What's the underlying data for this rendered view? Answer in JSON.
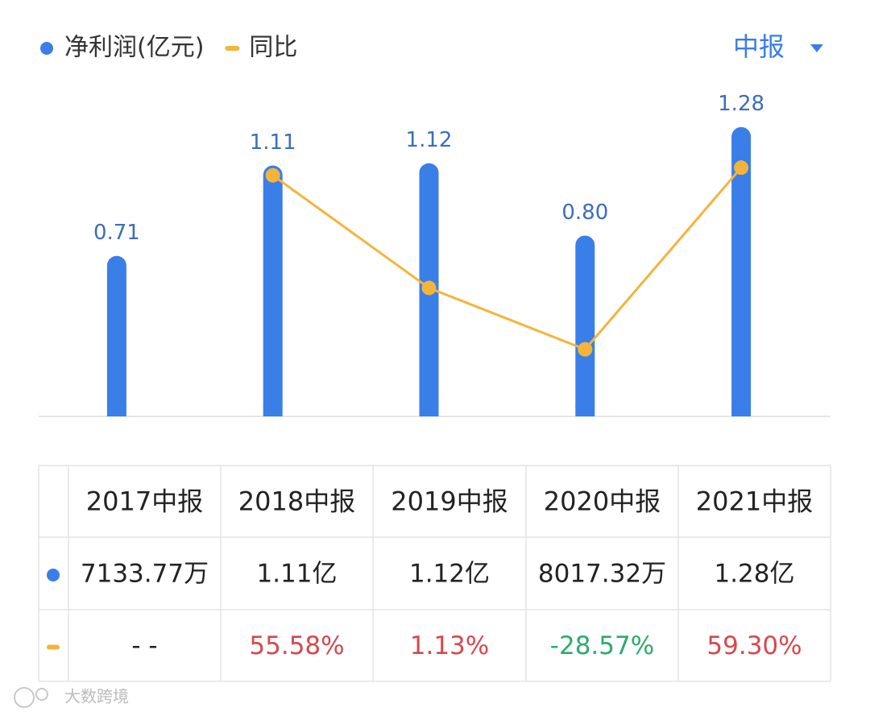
{
  "header": {
    "period": "中报"
  },
  "chart_data": {
    "type": "bar",
    "categories": [
      "2017中报",
      "2018中报",
      "2019中报",
      "2020中报",
      "2021中报"
    ],
    "series": [
      {
        "name": "净利润(亿元)",
        "type": "bar",
        "color": "#3a7ee8",
        "values": [
          0.71,
          1.11,
          1.12,
          0.8,
          1.28
        ],
        "value_labels": [
          "0.71",
          "1.11",
          "1.12",
          "0.80",
          "1.28"
        ]
      },
      {
        "name": "同比",
        "type": "line",
        "color": "#f4b43a",
        "axis": "y2",
        "values": [
          null,
          55.58,
          1.13,
          -28.57,
          59.3
        ]
      }
    ],
    "ylim": [
      0,
      1.5
    ],
    "y2lim": [
      -61,
      103
    ]
  },
  "table": {
    "rows": [
      [
        "7133.77万",
        "1.11亿",
        "1.12亿",
        "8017.32万",
        "1.28亿"
      ],
      [
        "- -",
        "55.58%",
        "1.13%",
        "-28.57%",
        "59.30%"
      ]
    ],
    "colors": [
      [
        "#222222",
        "#222222",
        "#222222",
        "#222222",
        "#222222"
      ],
      [
        "#222222",
        "#d6484e",
        "#d6484e",
        "#2eaa6e",
        "#d6484e"
      ]
    ]
  },
  "watermark": "大数跨境"
}
